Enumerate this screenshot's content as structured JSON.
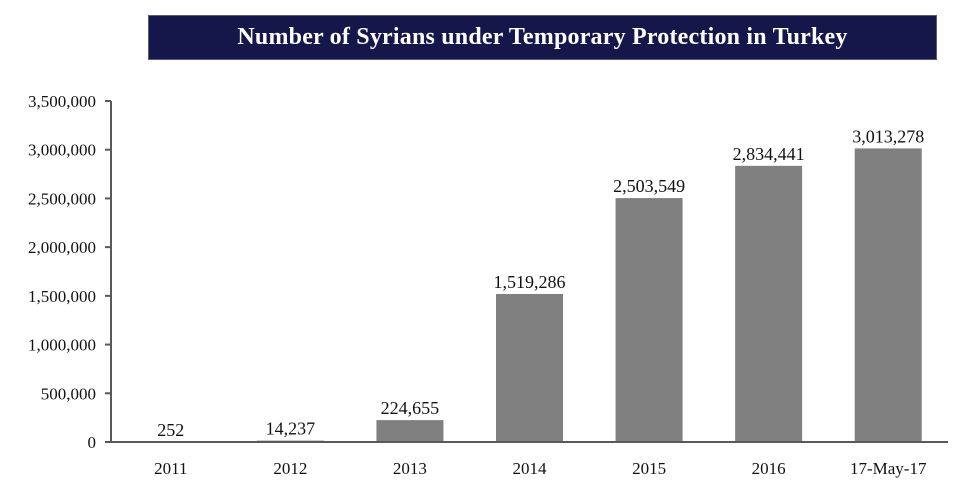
{
  "chart_data": {
    "type": "bar",
    "title": "Number of Syrians under Temporary Protection in Turkey",
    "xlabel": "",
    "ylabel": "",
    "categories": [
      "2011",
      "2012",
      "2013",
      "2014",
      "2015",
      "2016",
      "17-May-17"
    ],
    "values": [
      252,
      14237,
      224655,
      1519286,
      2503549,
      2834441,
      3013278
    ],
    "data_labels": [
      "252",
      "14,237",
      "224,655",
      "1,519,286",
      "2,503,549",
      "2,834,441",
      "3,013,278"
    ],
    "ylim": [
      0,
      3500000
    ],
    "yticks": [
      0,
      500000,
      1000000,
      1500000,
      2000000,
      2500000,
      3000000,
      3500000
    ],
    "ytick_labels": [
      "0",
      "500,000",
      "1,000,000",
      "1,500,000",
      "2,000,000",
      "2,500,000",
      "3,000,000",
      "3,500,000"
    ],
    "grid": false,
    "legend": "none",
    "colors": {
      "bar": "#808080",
      "title_background": "#15164a",
      "title_text": "#ffffff",
      "axis": "#595959"
    }
  }
}
